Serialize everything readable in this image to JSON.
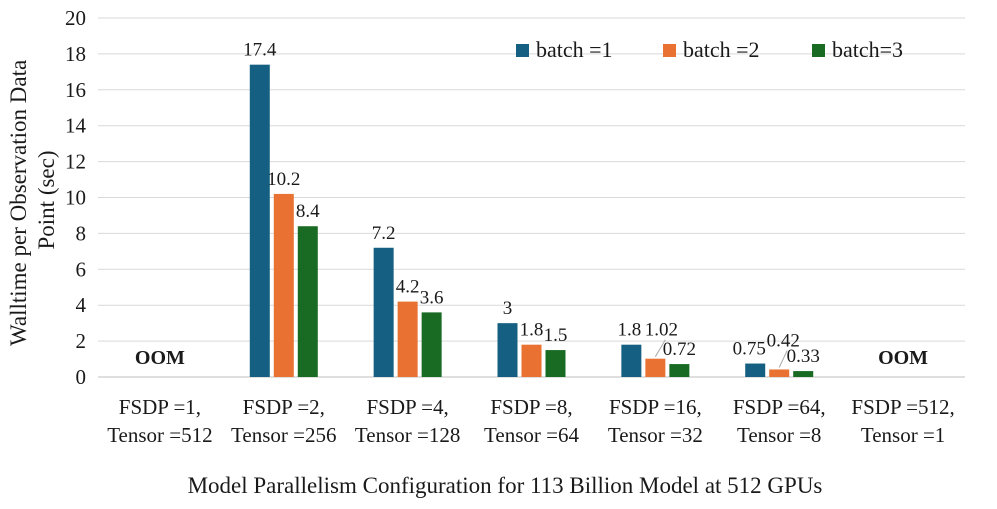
{
  "chart_data": {
    "type": "bar",
    "xlabel": "Model Parallelism Configuration for 113 Billion Model at 512 GPUs",
    "ylabel": [
      "Walltime per Observation Data",
      "Point (sec)"
    ],
    "ylim": [
      0,
      20
    ],
    "yticks": [
      0,
      2,
      4,
      6,
      8,
      10,
      12,
      14,
      16,
      18,
      20
    ],
    "grid": true,
    "legend_position": "top-right",
    "categories": [
      [
        "FSDP =1,",
        "Tensor =512"
      ],
      [
        "FSDP =2,",
        "Tensor =256"
      ],
      [
        "FSDP =4,",
        "Tensor =128"
      ],
      [
        "FSDP =8,",
        "Tensor =64"
      ],
      [
        "FSDP =16,",
        "Tensor =32"
      ],
      [
        "FSDP =64,",
        "Tensor =8"
      ],
      [
        "FSDP =512,",
        "Tensor =1"
      ]
    ],
    "series": [
      {
        "name": "batch =1",
        "color": "#156082",
        "values": [
          null,
          17.4,
          7.2,
          3,
          1.8,
          0.75,
          null
        ],
        "labels": [
          "",
          "17.4",
          "7.2",
          "3",
          "1.8",
          "0.75",
          ""
        ]
      },
      {
        "name": "batch =2",
        "color": "#e97132",
        "values": [
          null,
          10.2,
          4.2,
          1.8,
          1.02,
          0.42,
          null
        ],
        "labels": [
          "",
          "10.2",
          "4.2",
          "1.8",
          "1.02",
          "0.42",
          ""
        ]
      },
      {
        "name": "batch=3",
        "color": "#196b24",
        "values": [
          null,
          8.4,
          3.6,
          1.5,
          0.72,
          0.33,
          null
        ],
        "labels": [
          "",
          "8.4",
          "3.6",
          "1.5",
          "0.72",
          "0.33",
          ""
        ]
      }
    ],
    "annotations": [
      {
        "category_index": 0,
        "text": "OOM"
      },
      {
        "category_index": 6,
        "text": "OOM"
      }
    ]
  }
}
